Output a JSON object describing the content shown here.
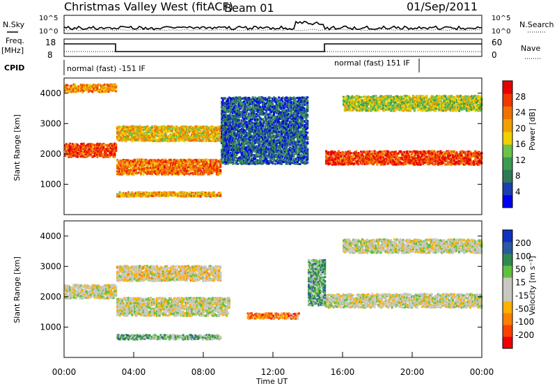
{
  "header": {
    "title": "Christmas Valley West (fitACF)",
    "beam": "Beam 01",
    "date": "01/Sep/2011"
  },
  "aux": {
    "nsky_label": "N.Sky",
    "nsearch_label": "N.Search",
    "freq_label_1": "Freq.",
    "freq_label_2": "[MHz]",
    "nave_label": "Nave",
    "cpid_label": "CPID",
    "noise_ticks": [
      "10^5",
      "10^0"
    ],
    "freq_ticks": [
      "18",
      "8"
    ],
    "nave_ticks": [
      "60",
      "0"
    ],
    "noise_right_ticks": [
      "10^5",
      "10^0"
    ],
    "cpid_segments": [
      "normal (fast) -151 IF",
      "normal (fast) 151 IF"
    ]
  },
  "colors": {
    "power": [
      "#0000ee",
      "#1a3fb0",
      "#2f7a55",
      "#3c9a52",
      "#6cc24a",
      "#f0d000",
      "#f0a000",
      "#f07000",
      "#f03800",
      "#e80000"
    ],
    "velocity": [
      "#ee0000",
      "#ff4000",
      "#ff8000",
      "#ffb000",
      "#c8c8c0",
      "#c8c8c0",
      "#60c040",
      "#2f8a50",
      "#2a5aa0",
      "#1030c0"
    ],
    "ground_scatter": "#c8c8c0"
  },
  "chart_data": [
    {
      "type": "heatmap",
      "name": "power",
      "ylabel": "Slant Range [km]",
      "ylim": [
        0,
        4500
      ],
      "yticks": [
        "1000",
        "2000",
        "3000",
        "4000"
      ],
      "colorbar_label": "Power [dB]",
      "colorbar_ticks": [
        "4",
        "8",
        "12",
        "16",
        "20",
        "24",
        "28"
      ],
      "bands": [
        {
          "t0": 0.0,
          "t1": 3.0,
          "r_center": 2150,
          "r_width": 450,
          "level": 0.85
        },
        {
          "t0": 3.0,
          "t1": 9.0,
          "r_center": 1600,
          "r_width": 500,
          "level": 0.75
        },
        {
          "t0": 3.0,
          "t1": 9.5,
          "r_center": 2700,
          "r_width": 500,
          "level": 0.6
        },
        {
          "t0": 3.0,
          "t1": 9.0,
          "r_center": 700,
          "r_width": 150,
          "level": 0.65
        },
        {
          "t0": 9.0,
          "t1": 14.0,
          "r_center": 2800,
          "r_width": 2200,
          "level": 0.2
        },
        {
          "t0": 15.0,
          "t1": 24.0,
          "r_center": 1900,
          "r_width": 450,
          "level": 0.85
        },
        {
          "t0": 16.0,
          "t1": 24.0,
          "r_center": 3700,
          "r_width": 500,
          "level": 0.5
        },
        {
          "t0": 0.0,
          "t1": 3.0,
          "r_center": 4200,
          "r_width": 250,
          "level": 0.7
        }
      ]
    },
    {
      "type": "heatmap",
      "name": "velocity",
      "ylabel": "Slant Range [km]",
      "ylim": [
        0,
        4500
      ],
      "yticks": [
        "1000",
        "2000",
        "3000",
        "4000"
      ],
      "xlabel": "Time UT",
      "xticks": [
        "00:00",
        "04:00",
        "08:00",
        "12:00",
        "16:00",
        "20:00",
        "00:00"
      ],
      "xlim": [
        0,
        24
      ],
      "colorbar_label": "Velocity [m s⁻¹]",
      "colorbar_ticks": [
        "-200",
        "-100",
        "-50",
        "-15",
        "15",
        "50",
        "100",
        "200"
      ],
      "bands": [
        {
          "t0": 0.0,
          "t1": 3.0,
          "r_center": 2200,
          "r_width": 450,
          "level": 0.5
        },
        {
          "t0": 3.0,
          "t1": 9.5,
          "r_center": 1700,
          "r_width": 600,
          "level": 0.5
        },
        {
          "t0": 3.0,
          "t1": 9.0,
          "r_center": 2800,
          "r_width": 500,
          "level": 0.45
        },
        {
          "t0": 3.0,
          "t1": 9.0,
          "r_center": 700,
          "r_width": 150,
          "level": 0.65
        },
        {
          "t0": 10.5,
          "t1": 13.5,
          "r_center": 1400,
          "r_width": 180,
          "level": 0.25
        },
        {
          "t0": 15.0,
          "t1": 24.0,
          "r_center": 1900,
          "r_width": 450,
          "level": 0.5
        },
        {
          "t0": 16.0,
          "t1": 24.0,
          "r_center": 3700,
          "r_width": 450,
          "level": 0.5
        },
        {
          "t0": 14.0,
          "t1": 15.0,
          "r_center": 2500,
          "r_width": 1500,
          "level": 0.7
        }
      ]
    }
  ]
}
